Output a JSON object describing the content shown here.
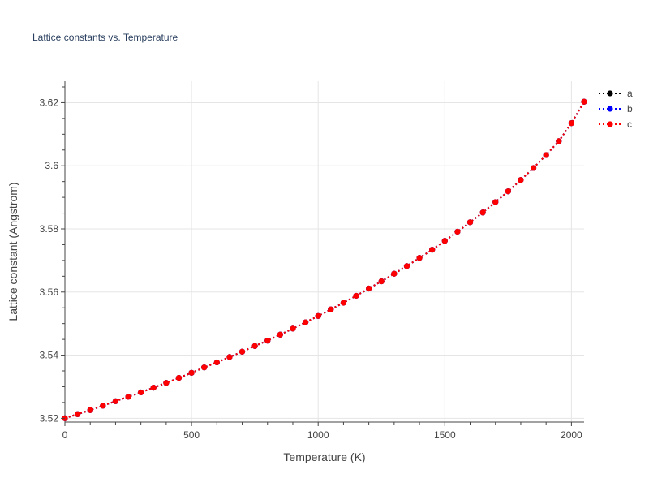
{
  "chart_data": {
    "type": "line",
    "title": "Lattice constants vs. Temperature",
    "xlabel": "Temperature (K)",
    "ylabel": "Lattice constant (Angstrom)",
    "xlim": [
      0,
      2050
    ],
    "ylim": [
      3.5188,
      3.6268
    ],
    "xticks": [
      0,
      500,
      1000,
      1500,
      2000
    ],
    "xtick_labels": [
      "0",
      "500",
      "1000",
      "1500",
      "2000"
    ],
    "yticks": [
      3.52,
      3.54,
      3.56,
      3.58,
      3.6,
      3.62
    ],
    "ytick_labels": [
      "3.52",
      "3.54",
      "3.56",
      "3.58",
      "3.6",
      "3.62"
    ],
    "grid": true,
    "legend_position": "top-right",
    "x": [
      0,
      50,
      100,
      150,
      200,
      250,
      300,
      350,
      400,
      450,
      500,
      550,
      600,
      650,
      700,
      750,
      800,
      850,
      900,
      950,
      1000,
      1050,
      1100,
      1150,
      1200,
      1250,
      1300,
      1350,
      1400,
      1450,
      1500,
      1550,
      1600,
      1650,
      1700,
      1750,
      1800,
      1850,
      1900,
      1950,
      2000,
      2050
    ],
    "series": [
      {
        "name": "a",
        "color": "#000000",
        "values": [
          3.52,
          3.5213,
          3.5226,
          3.524,
          3.5254,
          3.5268,
          3.5282,
          3.5297,
          3.5312,
          3.5328,
          3.5344,
          3.5361,
          3.5377,
          3.5394,
          3.5411,
          3.5429,
          3.5446,
          3.5465,
          3.5484,
          3.5504,
          3.5524,
          3.5545,
          3.5566,
          3.5588,
          3.5611,
          3.5634,
          3.5658,
          3.5682,
          3.5708,
          3.5734,
          3.5762,
          3.5791,
          3.5821,
          3.5852,
          3.5885,
          3.5919,
          3.5955,
          3.5993,
          3.6034,
          3.6078,
          3.6135,
          3.6203
        ]
      },
      {
        "name": "b",
        "color": "#0000ff",
        "values": [
          3.52,
          3.5213,
          3.5226,
          3.524,
          3.5254,
          3.5268,
          3.5282,
          3.5297,
          3.5312,
          3.5328,
          3.5344,
          3.5361,
          3.5377,
          3.5394,
          3.5411,
          3.5429,
          3.5446,
          3.5465,
          3.5484,
          3.5504,
          3.5524,
          3.5545,
          3.5566,
          3.5588,
          3.5611,
          3.5634,
          3.5658,
          3.5682,
          3.5708,
          3.5734,
          3.5762,
          3.5791,
          3.5821,
          3.5852,
          3.5885,
          3.5919,
          3.5955,
          3.5993,
          3.6034,
          3.6078,
          3.6135,
          3.6203
        ]
      },
      {
        "name": "c",
        "color": "#ff0000",
        "values": [
          3.52,
          3.5213,
          3.5226,
          3.524,
          3.5254,
          3.5268,
          3.5282,
          3.5297,
          3.5312,
          3.5328,
          3.5344,
          3.5361,
          3.5377,
          3.5394,
          3.5411,
          3.5429,
          3.5446,
          3.5465,
          3.5484,
          3.5504,
          3.5524,
          3.5545,
          3.5566,
          3.5588,
          3.5611,
          3.5634,
          3.5658,
          3.5682,
          3.5708,
          3.5734,
          3.5762,
          3.5791,
          3.5821,
          3.5852,
          3.5885,
          3.5919,
          3.5955,
          3.5993,
          3.6034,
          3.6078,
          3.6135,
          3.6203
        ]
      }
    ]
  }
}
